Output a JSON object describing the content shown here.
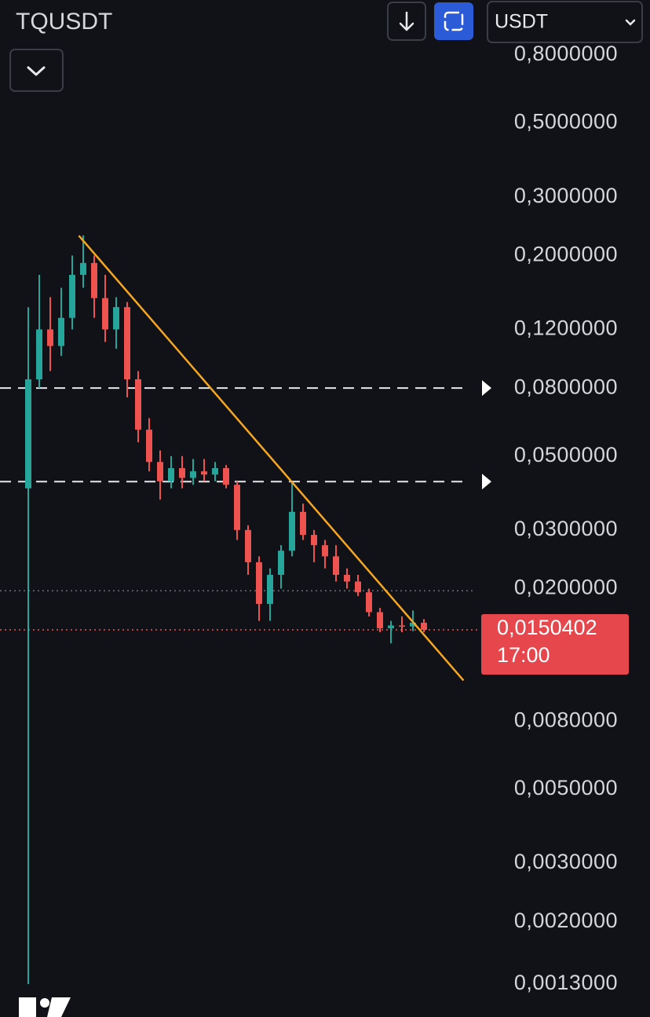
{
  "header": {
    "symbol": "TQUSDT",
    "currency": "USDT"
  },
  "chart_data": {
    "type": "candlestick",
    "log_scale": true,
    "up_color": "#26a69a",
    "down_color": "#ef5350",
    "ylim": [
      0.001035,
      1.17
    ],
    "yticks": [
      {
        "value": 0.8,
        "label": "0,8000000"
      },
      {
        "value": 0.5,
        "label": "0,5000000"
      },
      {
        "value": 0.3,
        "label": "0,3000000"
      },
      {
        "value": 0.2,
        "label": "0,2000000"
      },
      {
        "value": 0.12,
        "label": "0,1200000"
      },
      {
        "value": 0.08,
        "label": "0,0800000"
      },
      {
        "value": 0.05,
        "label": "0,0500000"
      },
      {
        "value": 0.03,
        "label": "0,0300000"
      },
      {
        "value": 0.02,
        "label": "0,0200000"
      },
      {
        "value": 0.008,
        "label": "0,0080000"
      },
      {
        "value": 0.005,
        "label": "0,0050000"
      },
      {
        "value": 0.003,
        "label": "0,0030000"
      },
      {
        "value": 0.002,
        "label": "0,0020000"
      },
      {
        "value": 0.0013,
        "label": "0,0013000"
      }
    ],
    "open": [
      0.04,
      0.085,
      0.12,
      0.107,
      0.13,
      0.175,
      0.19,
      0.149,
      0.12,
      0.14,
      0.085,
      0.06,
      0.048,
      0.042,
      0.046,
      0.043,
      0.045,
      0.044,
      0.046,
      0.041,
      0.03,
      0.024,
      0.018,
      0.022,
      0.026,
      0.034,
      0.029,
      0.027,
      0.025,
      0.022,
      0.021,
      0.0195,
      0.017,
      0.0152,
      0.0155,
      0.0154,
      0.0158
    ],
    "high": [
      0.14,
      0.175,
      0.15,
      0.16,
      0.2,
      0.23,
      0.2,
      0.175,
      0.15,
      0.145,
      0.09,
      0.065,
      0.052,
      0.05,
      0.05,
      0.049,
      0.049,
      0.048,
      0.047,
      0.042,
      0.031,
      0.025,
      0.023,
      0.027,
      0.042,
      0.036,
      0.03,
      0.028,
      0.027,
      0.023,
      0.022,
      0.02,
      0.0175,
      0.016,
      0.0165,
      0.0172,
      0.0162
    ],
    "low": [
      0.0013,
      0.08,
      0.09,
      0.1,
      0.12,
      0.16,
      0.13,
      0.11,
      0.105,
      0.075,
      0.055,
      0.045,
      0.037,
      0.04,
      0.04,
      0.041,
      0.042,
      0.042,
      0.04,
      0.028,
      0.022,
      0.016,
      0.016,
      0.02,
      0.025,
      0.028,
      0.024,
      0.023,
      0.021,
      0.02,
      0.019,
      0.0165,
      0.0148,
      0.0137,
      0.0148,
      0.0149,
      0.0148
    ],
    "close": [
      0.085,
      0.12,
      0.107,
      0.13,
      0.175,
      0.19,
      0.149,
      0.12,
      0.14,
      0.085,
      0.06,
      0.048,
      0.042,
      0.046,
      0.043,
      0.045,
      0.044,
      0.046,
      0.041,
      0.03,
      0.024,
      0.018,
      0.022,
      0.026,
      0.034,
      0.029,
      0.027,
      0.025,
      0.022,
      0.021,
      0.0195,
      0.017,
      0.0152,
      0.0155,
      0.0154,
      0.0158,
      0.0150402
    ],
    "dashed_lines": [
      0.08,
      0.0419
    ],
    "dotted_line": 0.0197,
    "trend_line": {
      "color": "#f5a623",
      "x": [
        4.6,
        39.6
      ],
      "values": [
        0.2295,
        0.0106
      ]
    },
    "last_price": {
      "value": 0.0150402,
      "label": "0,0150402"
    },
    "countdown": "17:00"
  }
}
